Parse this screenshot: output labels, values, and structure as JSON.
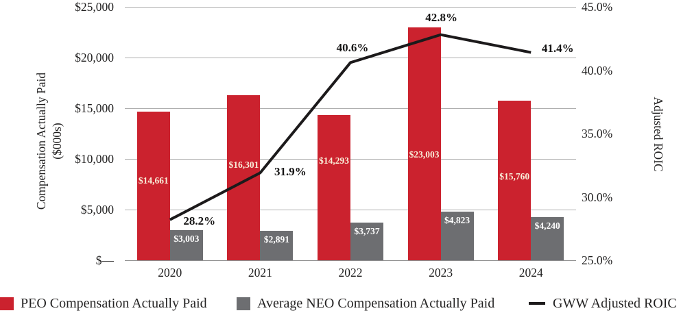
{
  "chart_data": {
    "type": "combo-bar-line",
    "categories": [
      "2020",
      "2021",
      "2022",
      "2023",
      "2024"
    ],
    "series": [
      {
        "name": "PEO Compensation Actually Paid",
        "type": "bar",
        "axis": "left",
        "color": "#cb222e",
        "values": [
          14661,
          16301,
          14293,
          23003,
          15760
        ],
        "labels": [
          "$14,661",
          "$16,301",
          "$14,293",
          "$23,003",
          "$15,760"
        ]
      },
      {
        "name": "Average NEO Compensation Actually Paid",
        "type": "bar",
        "axis": "left",
        "color": "#6d6e71",
        "values": [
          3003,
          2891,
          3737,
          4823,
          4240
        ],
        "labels": [
          "$3,003",
          "$2,891",
          "$3,737",
          "$4,823",
          "$4,240"
        ]
      },
      {
        "name": "GWW Adjusted ROIC",
        "type": "line",
        "axis": "right",
        "color": "#1c1a1b",
        "values": [
          28.2,
          31.9,
          40.6,
          42.8,
          41.4
        ],
        "labels": [
          "28.2%",
          "31.9%",
          "40.6%",
          "42.8%",
          "41.4%"
        ]
      }
    ],
    "left_axis": {
      "title_line1": "Compensation Actually Paid",
      "title_line2": "($000s)",
      "min": 0,
      "max": 25000,
      "ticks_top_to_bottom": [
        "$25,000",
        "$20,000",
        "$15,000",
        "$10,000",
        "$5,000",
        "$—"
      ]
    },
    "right_axis": {
      "title": "Adjusted ROIC",
      "min": 25,
      "max": 45,
      "ticks_top_to_bottom": [
        "45.0%",
        "40.0%",
        "35.0%",
        "30.0%",
        "25.0%"
      ]
    },
    "grid": true,
    "legend_position": "bottom"
  },
  "colors": {
    "peo_bar": "#cb222e",
    "neo_bar": "#6d6e71",
    "roic_line": "#1c1a1b",
    "gridline": "#aeaeae",
    "peo_bar_label_text": "#f8edd8",
    "neo_bar_label_text": "#ffffff"
  }
}
